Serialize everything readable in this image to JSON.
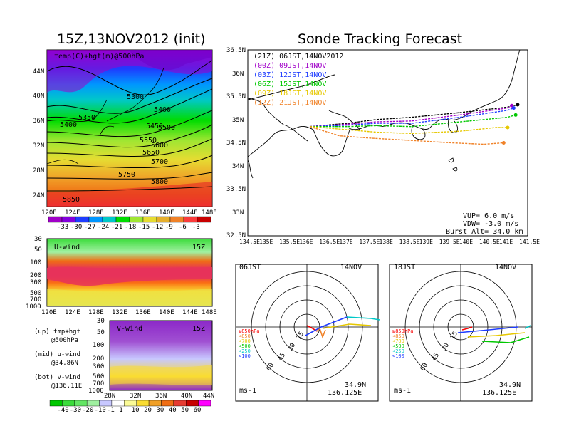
{
  "titles": {
    "left": "15Z,13NOV2012 (init)",
    "right": "Sonde Tracking Forecast"
  },
  "upper_panel": {
    "label": "temp(C)+hgt(m)@500hPa",
    "lat_labels": [
      "44N",
      "40N",
      "36N",
      "32N",
      "28N",
      "24N"
    ],
    "lon_labels": [
      "120E",
      "124E",
      "128E",
      "132E",
      "136E",
      "140E",
      "144E",
      "148E"
    ],
    "contour_labels": [
      "5300",
      "5350",
      "5400",
      "5400",
      "5450",
      "5500",
      "5550",
      "5600",
      "5650",
      "5700",
      "5750",
      "5800",
      "5850"
    ],
    "colorbar_labels": [
      "-33",
      "-30",
      "-27",
      "-24",
      "-21",
      "-18",
      "-15",
      "-12",
      "-9",
      "-6",
      "-3"
    ],
    "colorbar_colors": [
      "#a000c8",
      "#8200dc",
      "#1e3cff",
      "#0096ff",
      "#00c8c8",
      "#00dc00",
      "#a0e632",
      "#e6dc32",
      "#e6af2d",
      "#f08228",
      "#fa3c3c",
      "#c80000"
    ]
  },
  "u_wind_panel": {
    "label": "U-wind",
    "time": "15Z",
    "pressure_labels": [
      "30",
      "50",
      "100",
      "200",
      "300",
      "500",
      "700",
      "1000"
    ],
    "lon_labels": [
      "120E",
      "124E",
      "128E",
      "132E",
      "136E",
      "140E",
      "144E",
      "148E"
    ]
  },
  "v_wind_panel": {
    "label": "V-wind",
    "time": "15Z",
    "pressure_labels": [
      "30",
      "50",
      "100",
      "200",
      "300",
      "500",
      "700",
      "1000"
    ],
    "lat_labels": [
      "28N",
      "32N",
      "36N",
      "40N",
      "44N"
    ]
  },
  "notes": [
    {
      "a": "(up) tmp+hgt",
      "b": "@500hPa"
    },
    {
      "a": "(mid) u-wind",
      "b": "@34.86N"
    },
    {
      "a": "(bot) v-wind",
      "b": "@136.11E"
    }
  ],
  "wind_colorbar": {
    "labels": [
      "-40",
      "-30",
      "-20",
      "-10",
      "-1",
      "1",
      "10",
      "20",
      "30",
      "40",
      "50",
      "60"
    ],
    "colors": [
      "#00c800",
      "#3cdc3c",
      "#64e664",
      "#a0f0a0",
      "#c8c8ff",
      "#ffffff",
      "#fafa96",
      "#fadc32",
      "#f0a028",
      "#f06e14",
      "#e63c32",
      "#c80000",
      "#ff00ff"
    ]
  },
  "tracking": {
    "lat_labels": [
      "36.5N",
      "36N",
      "35.5N",
      "35N",
      "34.5N",
      "34N",
      "33.5N",
      "33N",
      "32.5N"
    ],
    "lon_labels": [
      "134.5E",
      "135E",
      "135.5E",
      "136E",
      "136.5E",
      "137E",
      "137.5E",
      "138E",
      "138.5E",
      "139E",
      "139.5E",
      "140E",
      "140.5E",
      "141E",
      "141.5E"
    ],
    "legend": [
      {
        "tag": "(21Z)",
        "time": "06JST,14NOV2012",
        "color": "#000000"
      },
      {
        "tag": "(00Z)",
        "time": "09JST,14NOV",
        "color": "#a000c8"
      },
      {
        "tag": "(03Z)",
        "time": "12JST,14NOV",
        "color": "#1e3cff"
      },
      {
        "tag": "(06Z)",
        "time": "15JST,14NOV",
        "color": "#00c800"
      },
      {
        "tag": "(09Z)",
        "time": "18JST,14NOV",
        "color": "#e6c800"
      },
      {
        "tag": "(12Z)",
        "time": "21JST,14NOV",
        "color": "#f08228"
      }
    ],
    "params": [
      "VUP=  6.0  m/s",
      "VDW= -3.0  m/s",
      "Burst Alt= 34.0  km"
    ]
  },
  "chart_data": [
    {
      "type": "line",
      "title": "Sonde Tracking Forecast",
      "xlabel": "",
      "ylabel": "",
      "xlim": [
        134.5,
        141.5
      ],
      "ylim": [
        32.5,
        36.5
      ],
      "series": [
        {
          "name": "(21Z) 06JST,14NOV2012",
          "x": [
            136.05,
            137.0,
            137.7,
            138.6,
            139.8,
            141.0,
            141.25
          ],
          "y": [
            34.85,
            34.92,
            35.0,
            35.05,
            35.15,
            35.27,
            35.32
          ]
        },
        {
          "name": "(00Z) 09JST,14NOV",
          "x": [
            136.05,
            137.0,
            137.7,
            138.6,
            139.8,
            141.0,
            141.1
          ],
          "y": [
            34.85,
            34.9,
            34.95,
            34.97,
            35.1,
            35.25,
            35.3
          ]
        },
        {
          "name": "(03Z) 12JST,14NOV",
          "x": [
            136.05,
            137.0,
            137.7,
            138.6,
            139.8,
            141.0,
            141.15
          ],
          "y": [
            34.85,
            34.88,
            34.92,
            34.92,
            35.05,
            35.2,
            35.25
          ]
        },
        {
          "name": "(06Z) 15JST,14NOV",
          "x": [
            136.05,
            137.0,
            137.7,
            138.6,
            139.8,
            141.0,
            141.2
          ],
          "y": [
            34.85,
            34.85,
            34.87,
            34.85,
            34.95,
            35.05,
            35.1
          ]
        },
        {
          "name": "(09Z) 18JST,14NOV",
          "x": [
            136.05,
            137.0,
            137.7,
            138.6,
            139.8,
            140.7,
            141.0
          ],
          "y": [
            34.85,
            34.78,
            34.73,
            34.7,
            34.75,
            34.83,
            34.83
          ]
        },
        {
          "name": "(12Z) 21JST,14NOV",
          "x": [
            136.05,
            136.8,
            137.6,
            138.6,
            139.6,
            140.4,
            140.9
          ],
          "y": [
            34.85,
            34.65,
            34.6,
            34.55,
            34.5,
            34.47,
            34.5
          ]
        }
      ]
    }
  ],
  "hodographs": [
    {
      "time": "06JST",
      "date": "14NOV",
      "unit": "ms-1",
      "lat": "34.9N",
      "lon": "136.125E",
      "ring_labels": [
        "15",
        "30",
        "45",
        "60"
      ],
      "legend": [
        "≥850hPa",
        "<850",
        "<700",
        "<500",
        "<250",
        "<100"
      ],
      "legend_colors": [
        "#fa0000",
        "#f08228",
        "#e6c800",
        "#00c800",
        "#00c8c8",
        "#1e3cff"
      ]
    },
    {
      "time": "18JST",
      "date": "14NOV",
      "unit": "ms-1",
      "lat": "34.9N",
      "lon": "136.125E",
      "ring_labels": [
        "15",
        "30",
        "45",
        "60"
      ],
      "legend": [
        "≥850hPa",
        "<850",
        "<700",
        "<500",
        "<250",
        "<100"
      ],
      "legend_colors": [
        "#fa0000",
        "#f08228",
        "#e6c800",
        "#00c800",
        "#00c8c8",
        "#1e3cff"
      ]
    }
  ]
}
